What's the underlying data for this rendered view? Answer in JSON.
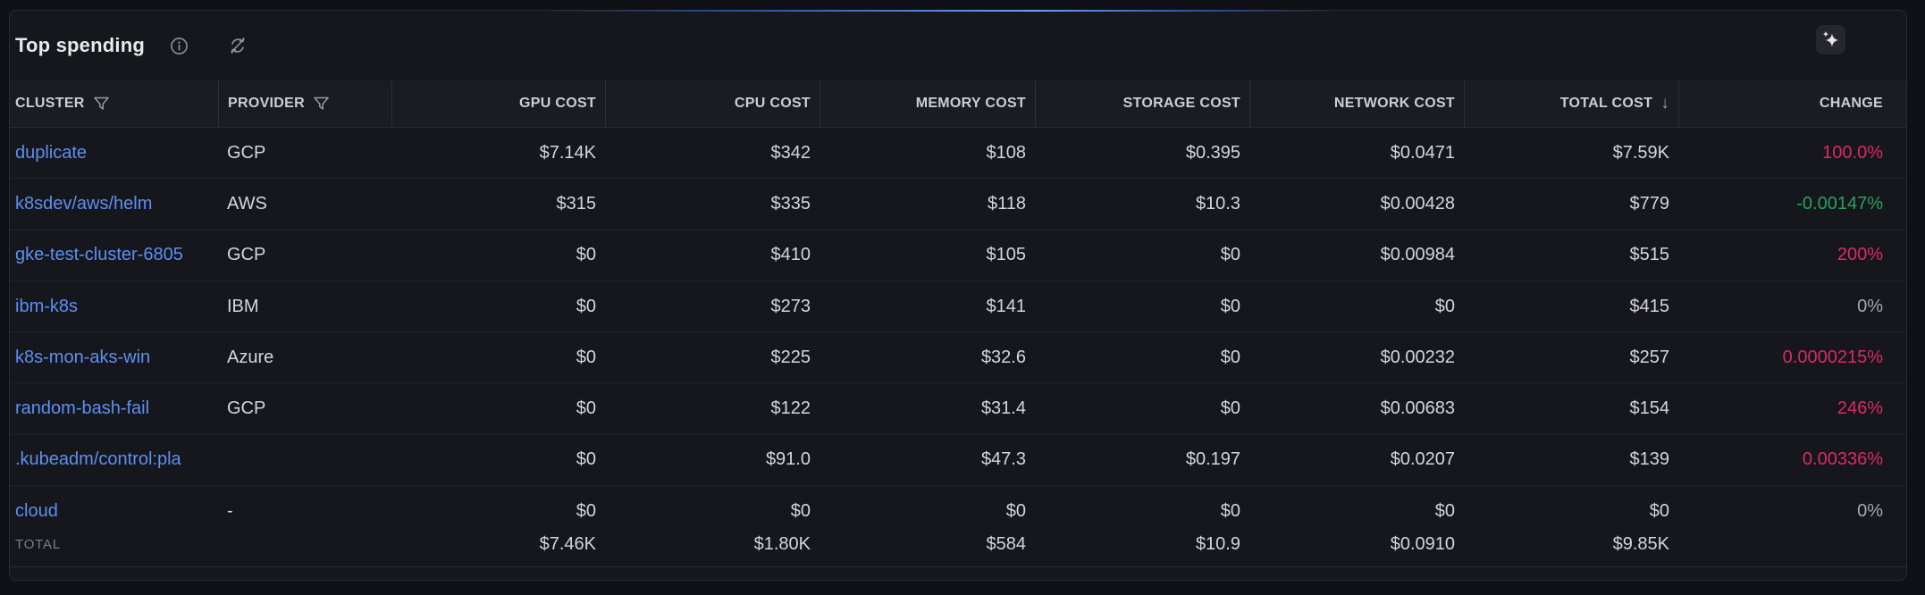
{
  "panel": {
    "title": "Top spending",
    "icons": {
      "info": "info-icon",
      "sync": "sync-off-icon",
      "ai": "sparkles-icon"
    }
  },
  "colors": {
    "accent_gradient_blue": "#6f9ff2",
    "link_blue": "#5d8ff2",
    "change_red": "#db2a62",
    "change_green": "#27a35c",
    "change_neutral": "#a6a8af"
  },
  "columns": [
    {
      "key": "cluster",
      "label": "CLUSTER",
      "align": "left",
      "filter": true
    },
    {
      "key": "provider",
      "label": "PROVIDER",
      "align": "left",
      "filter": true
    },
    {
      "key": "gpu",
      "label": "GPU COST",
      "align": "right"
    },
    {
      "key": "cpu",
      "label": "CPU COST",
      "align": "right"
    },
    {
      "key": "memory",
      "label": "MEMORY COST",
      "align": "right"
    },
    {
      "key": "storage",
      "label": "STORAGE COST",
      "align": "right"
    },
    {
      "key": "network",
      "label": "NETWORK COST",
      "align": "right"
    },
    {
      "key": "total",
      "label": "TOTAL COST",
      "align": "right",
      "sort": "desc"
    },
    {
      "key": "change",
      "label": "CHANGE",
      "align": "right"
    }
  ],
  "sort_indicator": "↓",
  "rows": [
    {
      "cluster": "duplicate",
      "provider": "GCP",
      "gpu": "$7.14K",
      "cpu": "$342",
      "memory": "$108",
      "storage": "$0.395",
      "network": "$0.0471",
      "total": "$7.59K",
      "change": "100.0%",
      "change_color": "red"
    },
    {
      "cluster": "k8sdev/aws/helm",
      "provider": "AWS",
      "gpu": "$315",
      "cpu": "$335",
      "memory": "$118",
      "storage": "$10.3",
      "network": "$0.00428",
      "total": "$779",
      "change": "-0.00147%",
      "change_color": "green"
    },
    {
      "cluster": "gke-test-cluster-6805",
      "provider": "GCP",
      "gpu": "$0",
      "cpu": "$410",
      "memory": "$105",
      "storage": "$0",
      "network": "$0.00984",
      "total": "$515",
      "change": "200%",
      "change_color": "red"
    },
    {
      "cluster": "ibm-k8s",
      "provider": "IBM",
      "gpu": "$0",
      "cpu": "$273",
      "memory": "$141",
      "storage": "$0",
      "network": "$0",
      "total": "$415",
      "change": "0%",
      "change_color": "neutral"
    },
    {
      "cluster": "k8s-mon-aks-win",
      "provider": "Azure",
      "gpu": "$0",
      "cpu": "$225",
      "memory": "$32.6",
      "storage": "$0",
      "network": "$0.00232",
      "total": "$257",
      "change": "0.0000215%",
      "change_color": "red"
    },
    {
      "cluster": "random-bash-fail",
      "provider": "GCP",
      "gpu": "$0",
      "cpu": "$122",
      "memory": "$31.4",
      "storage": "$0",
      "network": "$0.00683",
      "total": "$154",
      "change": "246%",
      "change_color": "red"
    },
    {
      "cluster": ".kubeadm/control:pla",
      "provider": "",
      "gpu": "$0",
      "cpu": "$91.0",
      "memory": "$47.3",
      "storage": "$0.197",
      "network": "$0.0207",
      "total": "$139",
      "change": "0.00336%",
      "change_color": "red"
    },
    {
      "cluster": "cloud",
      "provider": "-",
      "gpu": "$0",
      "cpu": "$0",
      "memory": "$0",
      "storage": "$0",
      "network": "$0",
      "total": "$0",
      "change": "0%",
      "change_color": "neutral"
    }
  ],
  "footer": {
    "label": "TOTAL",
    "gpu": "$7.46K",
    "cpu": "$1.80K",
    "memory": "$584",
    "storage": "$10.9",
    "network": "$0.0910",
    "total": "$9.85K",
    "change": ""
  }
}
